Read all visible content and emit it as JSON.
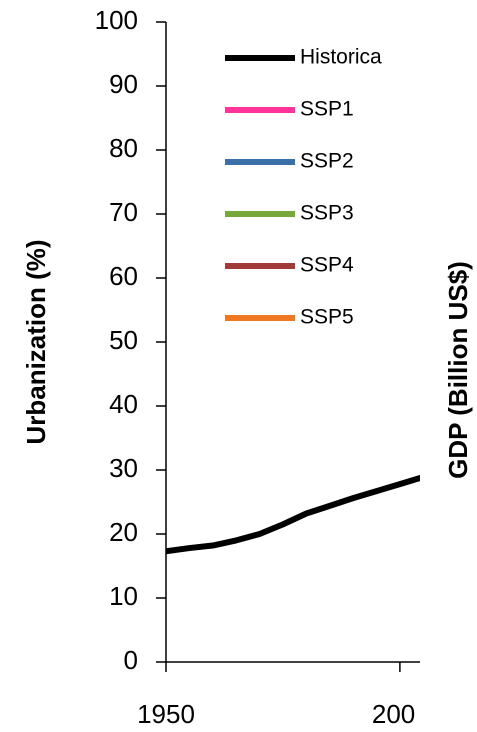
{
  "chart_data": {
    "type": "line",
    "y_label": "Urbanization (%)",
    "y2_label": "GDP (Billion US$)",
    "x": [
      1950,
      1955,
      1960,
      1965,
      1970,
      1975,
      1980,
      1985,
      1990,
      1995,
      2000,
      2005
    ],
    "series": [
      {
        "name": "Historica",
        "color": "#000000",
        "values": [
          17.3,
          17.8,
          18.2,
          19.0,
          20.0,
          21.5,
          23.2,
          24.4,
          25.6,
          26.7,
          27.8,
          28.9
        ]
      },
      {
        "name": "SSP1",
        "color": "#ff3399"
      },
      {
        "name": "SSP2",
        "color": "#3a6fa8"
      },
      {
        "name": "SSP3",
        "color": "#77a83a"
      },
      {
        "name": "SSP4",
        "color": "#a33a3a"
      },
      {
        "name": "SSP5",
        "color": "#f07820"
      }
    ],
    "xlim": [
      1950,
      2004.3
    ],
    "xticks": [
      1950,
      {
        "value": 2000,
        "label": "200"
      }
    ],
    "ylim": [
      0,
      100
    ],
    "yticks": [
      0,
      10,
      20,
      30,
      40,
      50,
      60,
      70,
      80,
      90,
      100
    ]
  }
}
